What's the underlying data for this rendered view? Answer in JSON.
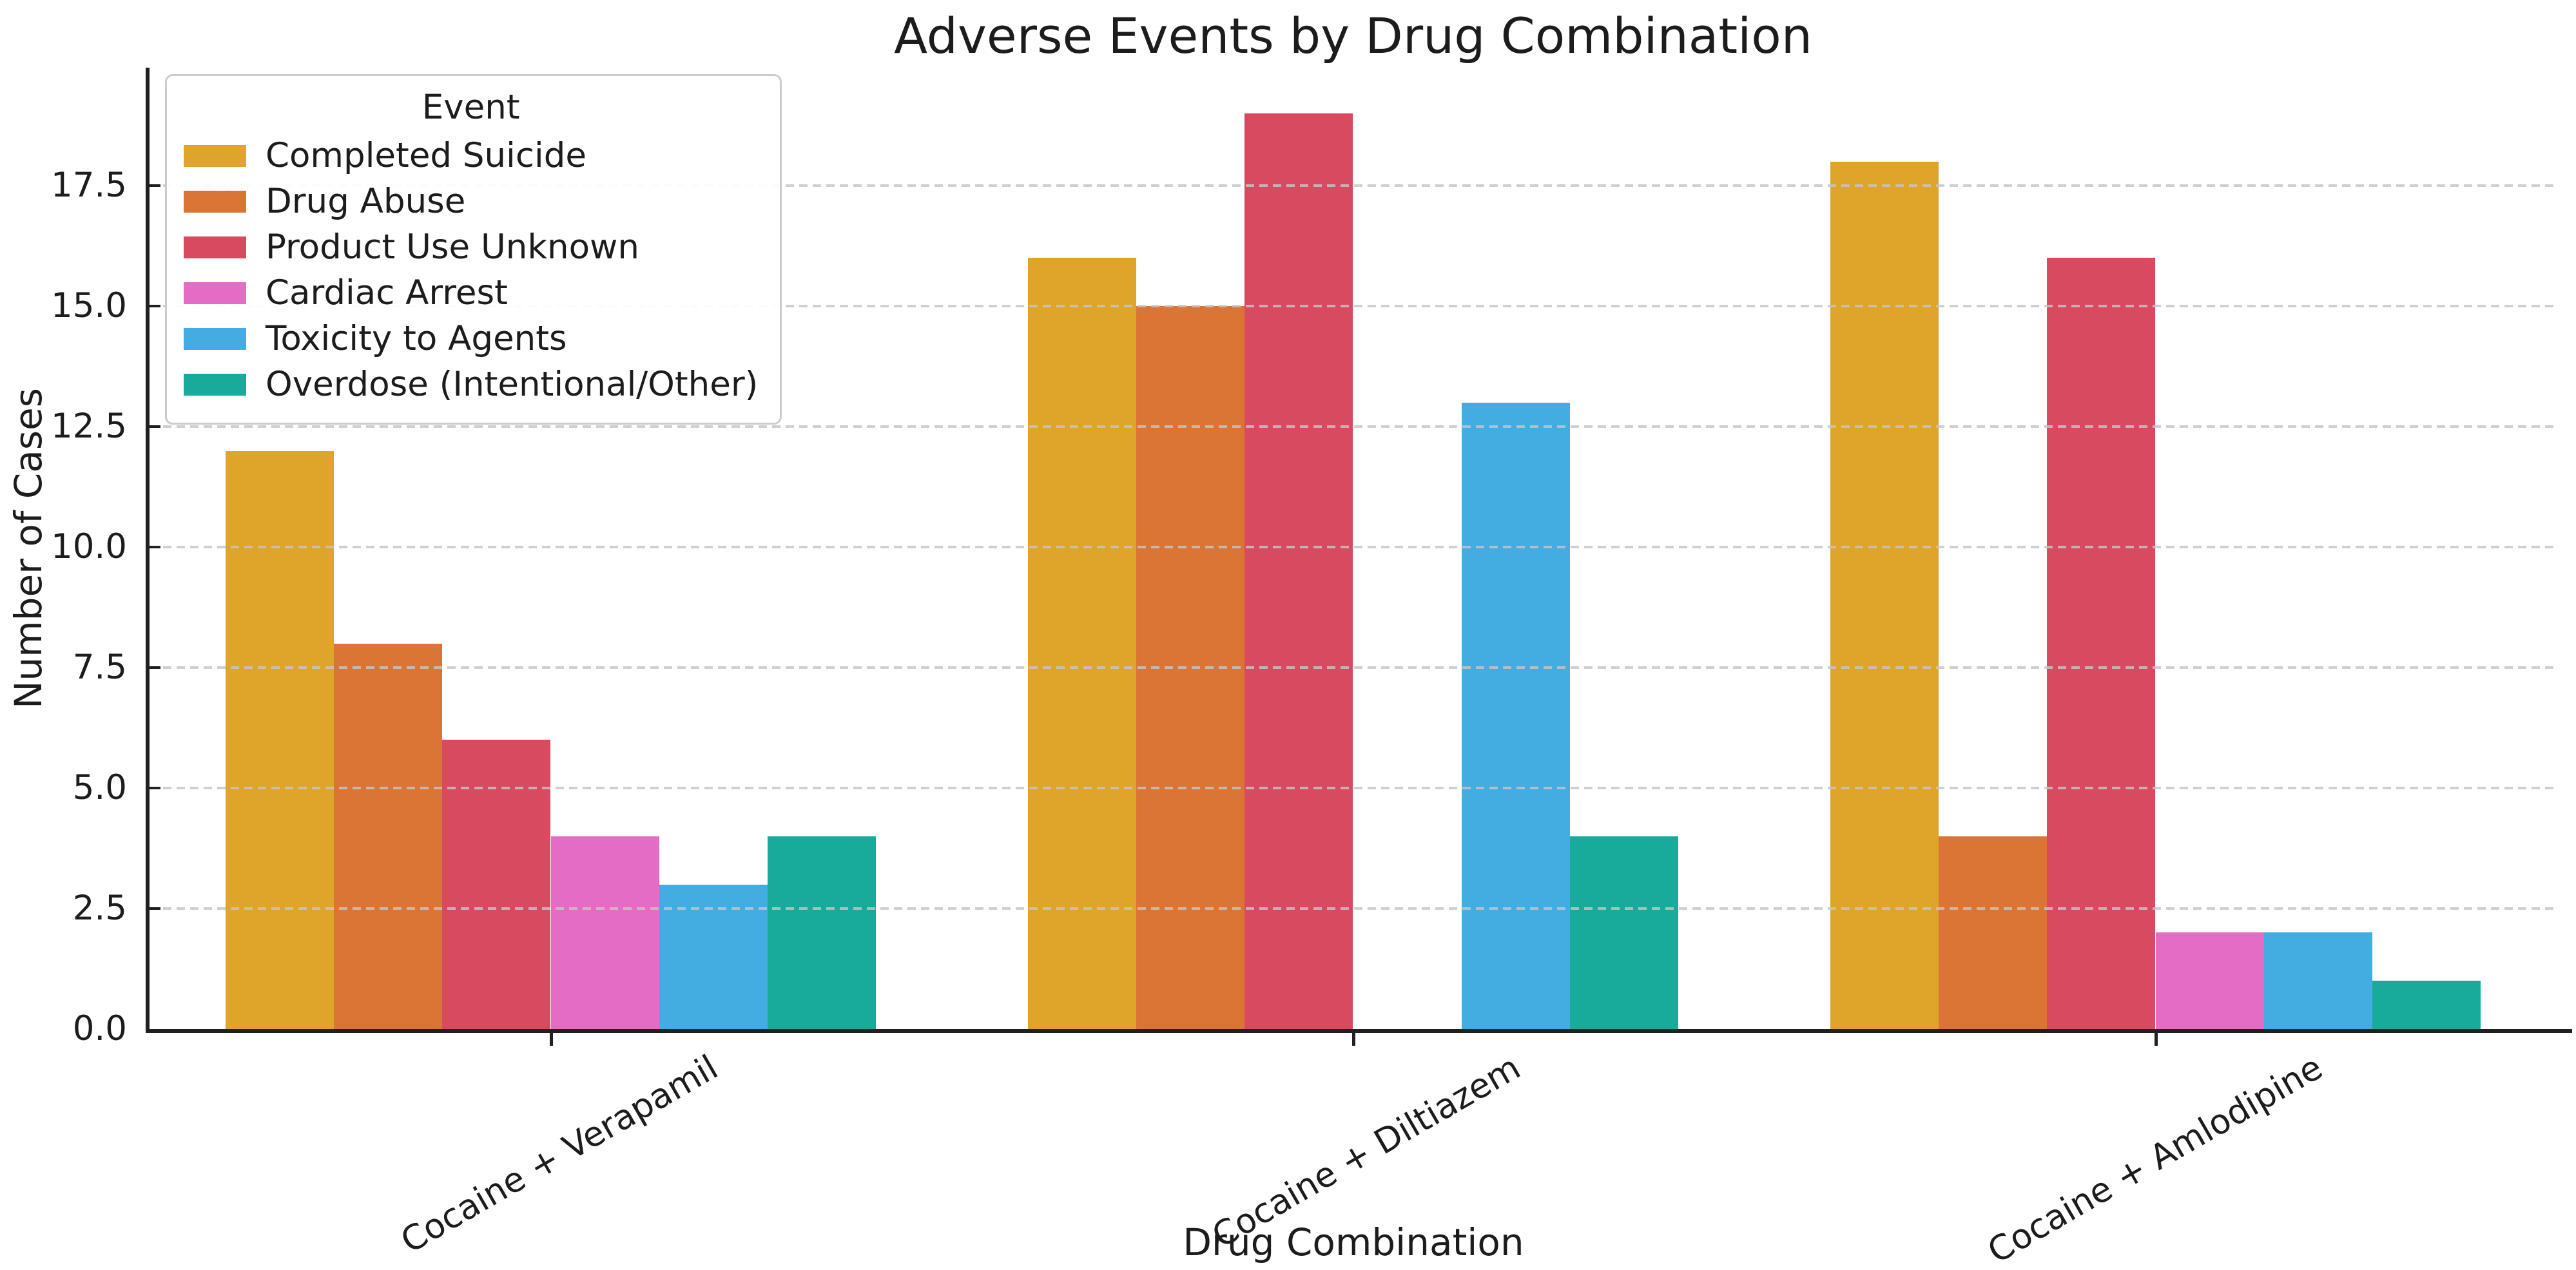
{
  "chart_data": {
    "type": "bar",
    "title": "Adverse Events by Drug Combination",
    "xlabel": "Drug Combination",
    "ylabel": "Number of Cases",
    "legend_title": "Event",
    "legend_position": "upper-left",
    "grid": "horizontal-dashed",
    "categories": [
      "Cocaine + Verapamil",
      "Cocaine + Diltiazem",
      "Cocaine + Amlodipine"
    ],
    "series": [
      {
        "name": "Completed Suicide",
        "color": "#DFA52B",
        "values": [
          12,
          16,
          18
        ]
      },
      {
        "name": "Drug Abuse",
        "color": "#DB7536",
        "values": [
          8,
          15,
          4
        ]
      },
      {
        "name": "Product Use Unknown",
        "color": "#D84A60",
        "values": [
          6,
          19,
          16
        ]
      },
      {
        "name": "Cardiac Arrest",
        "color": "#E46CC5",
        "values": [
          4,
          0,
          2
        ]
      },
      {
        "name": "Toxicity to Agents",
        "color": "#43ADE1",
        "values": [
          3,
          13,
          2
        ]
      },
      {
        "name": "Overdose (Intentional/Other)",
        "color": "#18AB9C",
        "values": [
          4,
          4,
          1
        ]
      }
    ],
    "yticks": [
      0.0,
      2.5,
      5.0,
      7.5,
      10.0,
      12.5,
      15.0,
      17.5
    ],
    "ytick_labels": [
      "0.0",
      "2.5",
      "5.0",
      "7.5",
      "10.0",
      "12.5",
      "15.0",
      "17.5"
    ],
    "ylim": [
      0,
      19.95
    ],
    "group_width_fraction": 0.81
  }
}
